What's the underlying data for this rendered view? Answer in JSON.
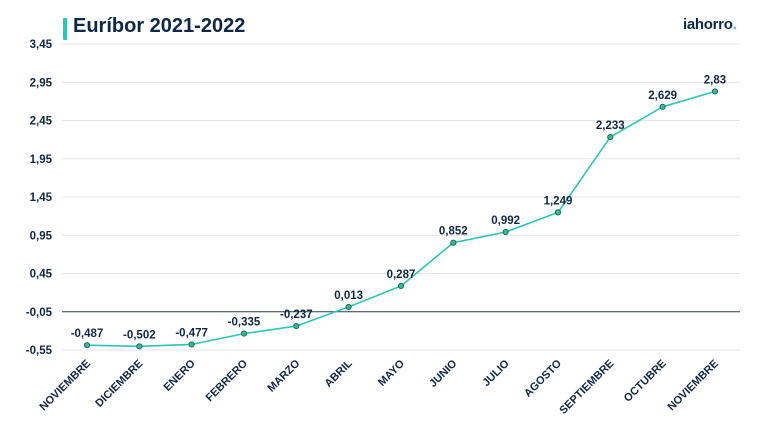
{
  "header": {
    "title": "Euríbor 2021-2022",
    "logo_text": "iahorro",
    "logo_dot": "."
  },
  "colors": {
    "line": "#2ec4b6",
    "marker_fill": "#3bb79b",
    "marker_stroke": "#1d6b5b",
    "text": "#0f2746",
    "grid": "#e4e4e4",
    "baseline": "#2b3a4a"
  },
  "chart_data": {
    "type": "line",
    "title": "Euríbor 2021-2022",
    "xlabel": "",
    "ylabel": "",
    "categories": [
      "NOVIEMBRE",
      "DICIEMBRE",
      "ENERO",
      "FEBRERO",
      "MARZO",
      "ABRIL",
      "MAYO",
      "JUNIO",
      "JULIO",
      "AGOSTO",
      "SEPTIEMBRE",
      "OCTUBRE",
      "NOVIEMBRE"
    ],
    "series": [
      {
        "values": [
          -0.487,
          -0.502,
          -0.477,
          -0.335,
          -0.237,
          0.013,
          0.287,
          0.852,
          0.992,
          1.249,
          2.233,
          2.629,
          2.83
        ]
      }
    ],
    "data_labels": [
      "-0,487",
      "-0,502",
      "-0,477",
      "-0,335",
      "-0,237",
      "0,013",
      "0,287",
      "0,852",
      "0,992",
      "1,249",
      "2,233",
      "2,629",
      "2,83"
    ],
    "y_ticks": [
      3.45,
      2.95,
      2.45,
      1.95,
      1.45,
      0.95,
      0.45,
      -0.05,
      -0.55
    ],
    "y_tick_labels": [
      "3,45",
      "2,95",
      "2,45",
      "1,95",
      "1,45",
      "0,95",
      "0,45",
      "-0,05",
      "-0,55"
    ],
    "ylim": [
      -0.55,
      3.45
    ],
    "grid": true,
    "baseline_value": -0.05,
    "legend": "none"
  }
}
